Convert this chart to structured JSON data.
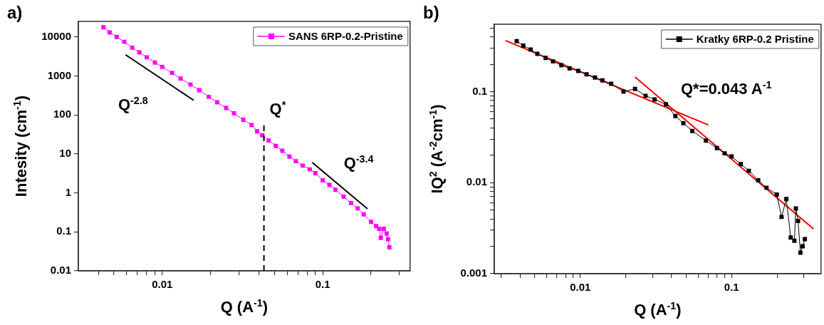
{
  "chart_data": [
    {
      "type": "line",
      "title": "a)",
      "xlabel": "Q (A$^{-1}$)",
      "ylabel": "Intesity (cm$^{-1}$)",
      "log": "xy",
      "legend": "top right",
      "xlim": [
        0.003,
        0.35
      ],
      "ylim": [
        0.01,
        25000
      ],
      "xticks": [
        {
          "value": 0.004,
          "label": null
        },
        {
          "value": 0.005,
          "label": null
        },
        {
          "value": 0.006,
          "label": null
        },
        {
          "value": 0.007,
          "label": null
        },
        {
          "value": 0.008,
          "label": null
        },
        {
          "value": 0.009,
          "label": null
        },
        {
          "value": 0.01,
          "label": "0.01"
        },
        {
          "value": 0.02,
          "label": null
        },
        {
          "value": 0.03,
          "label": null
        },
        {
          "value": 0.04,
          "label": null
        },
        {
          "value": 0.05,
          "label": null
        },
        {
          "value": 0.06,
          "label": null
        },
        {
          "value": 0.07,
          "label": null
        },
        {
          "value": 0.08,
          "label": null
        },
        {
          "value": 0.09,
          "label": null
        },
        {
          "value": 0.1,
          "label": "0.1"
        },
        {
          "value": 0.2,
          "label": null
        },
        {
          "value": 0.3,
          "label": null
        }
      ],
      "yticks": [
        0.01,
        0.1,
        1,
        10,
        100,
        1000,
        10000
      ],
      "series": [
        {
          "name": "SANS 6RP-0.2-Pristine",
          "color": "#ff00ff",
          "marker": "square",
          "x": [
            0.0043,
            0.0047,
            0.0052,
            0.0058,
            0.0065,
            0.0072,
            0.008,
            0.009,
            0.01,
            0.0115,
            0.013,
            0.015,
            0.017,
            0.0195,
            0.022,
            0.025,
            0.028,
            0.032,
            0.036,
            0.039,
            0.042,
            0.046,
            0.051,
            0.056,
            0.062,
            0.068,
            0.075,
            0.083,
            0.09,
            0.1,
            0.11,
            0.12,
            0.135,
            0.15,
            0.165,
            0.18,
            0.2,
            0.215,
            0.225,
            0.23,
            0.24,
            0.25,
            0.255,
            0.26
          ],
          "values": [
            17700,
            13000,
            10000,
            7500,
            5300,
            4000,
            3000,
            2200,
            1700,
            1200,
            850,
            600,
            430,
            290,
            210,
            150,
            110,
            75,
            55,
            38,
            30,
            22,
            16,
            12,
            8.5,
            6.5,
            5,
            4,
            3.2,
            2.1,
            1.6,
            1.2,
            0.8,
            0.55,
            0.4,
            0.28,
            0.18,
            0.14,
            0.12,
            0.07,
            0.12,
            0.09,
            0.065,
            0.04
          ]
        },
        {
          "color": "#000000",
          "marker": "none",
          "x": [
            0.0059,
            0.0157
          ],
          "values": [
            3500,
            236
          ]
        },
        {
          "color": "#000000",
          "marker": "none",
          "x": [
            0.086,
            0.19
          ],
          "values": [
            6,
            0.39
          ]
        }
      ],
      "ref_lines": [
        {
          "axis": "x",
          "value": 0.043,
          "label": "Q$^{*}$",
          "color": "#000000",
          "line_style": "dashed"
        }
      ],
      "annotations": [
        "Q$^{-2.8}$",
        "Q$^{-3.4}$"
      ]
    },
    {
      "type": "line",
      "title": "b)",
      "xlabel": "Q (A$^{-1}$)",
      "ylabel": "IQ$^{2}$ (A$^{-2}$cm$^{-1}$)",
      "log": "xy",
      "legend": "top right",
      "xlim": [
        0.0027,
        0.39
      ],
      "ylim": [
        0.001,
        0.55
      ],
      "xticks": [
        {
          "value": 0.003,
          "label": null
        },
        {
          "value": 0.004,
          "label": null
        },
        {
          "value": 0.005,
          "label": null
        },
        {
          "value": 0.006,
          "label": null
        },
        {
          "value": 0.007,
          "label": null
        },
        {
          "value": 0.008,
          "label": null
        },
        {
          "value": 0.009,
          "label": null
        },
        {
          "value": 0.01,
          "label": "0.01"
        },
        {
          "value": 0.02,
          "label": null
        },
        {
          "value": 0.03,
          "label": null
        },
        {
          "value": 0.04,
          "label": null
        },
        {
          "value": 0.05,
          "label": null
        },
        {
          "value": 0.06,
          "label": null
        },
        {
          "value": 0.07,
          "label": null
        },
        {
          "value": 0.08,
          "label": null
        },
        {
          "value": 0.09,
          "label": null
        },
        {
          "value": 0.1,
          "label": "0.1"
        },
        {
          "value": 0.2,
          "label": null
        },
        {
          "value": 0.3,
          "label": null
        }
      ],
      "yticks": [
        0.001,
        {
          "value": 0.002,
          "label": null
        },
        {
          "value": 0.003,
          "label": null
        },
        {
          "value": 0.004,
          "label": null
        },
        {
          "value": 0.005,
          "label": null
        },
        {
          "value": 0.006,
          "label": null
        },
        {
          "value": 0.007,
          "label": null
        },
        {
          "value": 0.008,
          "label": null
        },
        {
          "value": 0.009,
          "label": null
        },
        0.01,
        {
          "value": 0.02,
          "label": null
        },
        {
          "value": 0.03,
          "label": null
        },
        {
          "value": 0.04,
          "label": null
        },
        {
          "value": 0.05,
          "label": null
        },
        {
          "value": 0.06,
          "label": null
        },
        {
          "value": 0.07,
          "label": null
        },
        {
          "value": 0.08,
          "label": null
        },
        {
          "value": 0.09,
          "label": null
        },
        0.1,
        {
          "value": 0.2,
          "label": null
        },
        {
          "value": 0.3,
          "label": null
        },
        {
          "value": 0.4,
          "label": null
        },
        {
          "value": 0.5,
          "label": null
        }
      ],
      "series": [
        {
          "name": "Kratky 6RP-0.2 Pristine",
          "color": "#000000",
          "marker": "square",
          "x": [
            0.0038,
            0.0042,
            0.0047,
            0.0052,
            0.0059,
            0.0066,
            0.0075,
            0.0085,
            0.0097,
            0.011,
            0.0125,
            0.014,
            0.016,
            0.0193,
            0.023,
            0.027,
            0.031,
            0.0368,
            0.0425,
            0.048,
            0.055,
            0.0676,
            0.08,
            0.09,
            0.1,
            0.115,
            0.13,
            0.15,
            0.17,
            0.199,
            0.214,
            0.23,
            0.246,
            0.26,
            0.266,
            0.275,
            0.285,
            0.295,
            0.305
          ],
          "values": [
            0.358,
            0.32,
            0.29,
            0.26,
            0.235,
            0.215,
            0.195,
            0.18,
            0.169,
            0.155,
            0.143,
            0.133,
            0.122,
            0.1,
            0.107,
            0.09,
            0.082,
            0.0726,
            0.054,
            0.045,
            0.037,
            0.029,
            0.024,
            0.021,
            0.0194,
            0.016,
            0.0135,
            0.0106,
            0.0088,
            0.0074,
            0.0042,
            0.0066,
            0.0025,
            0.0023,
            0.0052,
            0.0038,
            0.0017,
            0.002,
            0.0024
          ]
        },
        {
          "color": "#ff0000",
          "marker": "none",
          "x": [
            0.0032,
            0.0703
          ],
          "values": [
            0.364,
            0.043
          ]
        },
        {
          "color": "#ff0000",
          "marker": "none",
          "x": [
            0.023,
            0.348
          ],
          "values": [
            0.145,
            0.0031
          ]
        }
      ],
      "annotations": [
        "Q*=0.043 A$^{-1}$"
      ]
    }
  ]
}
